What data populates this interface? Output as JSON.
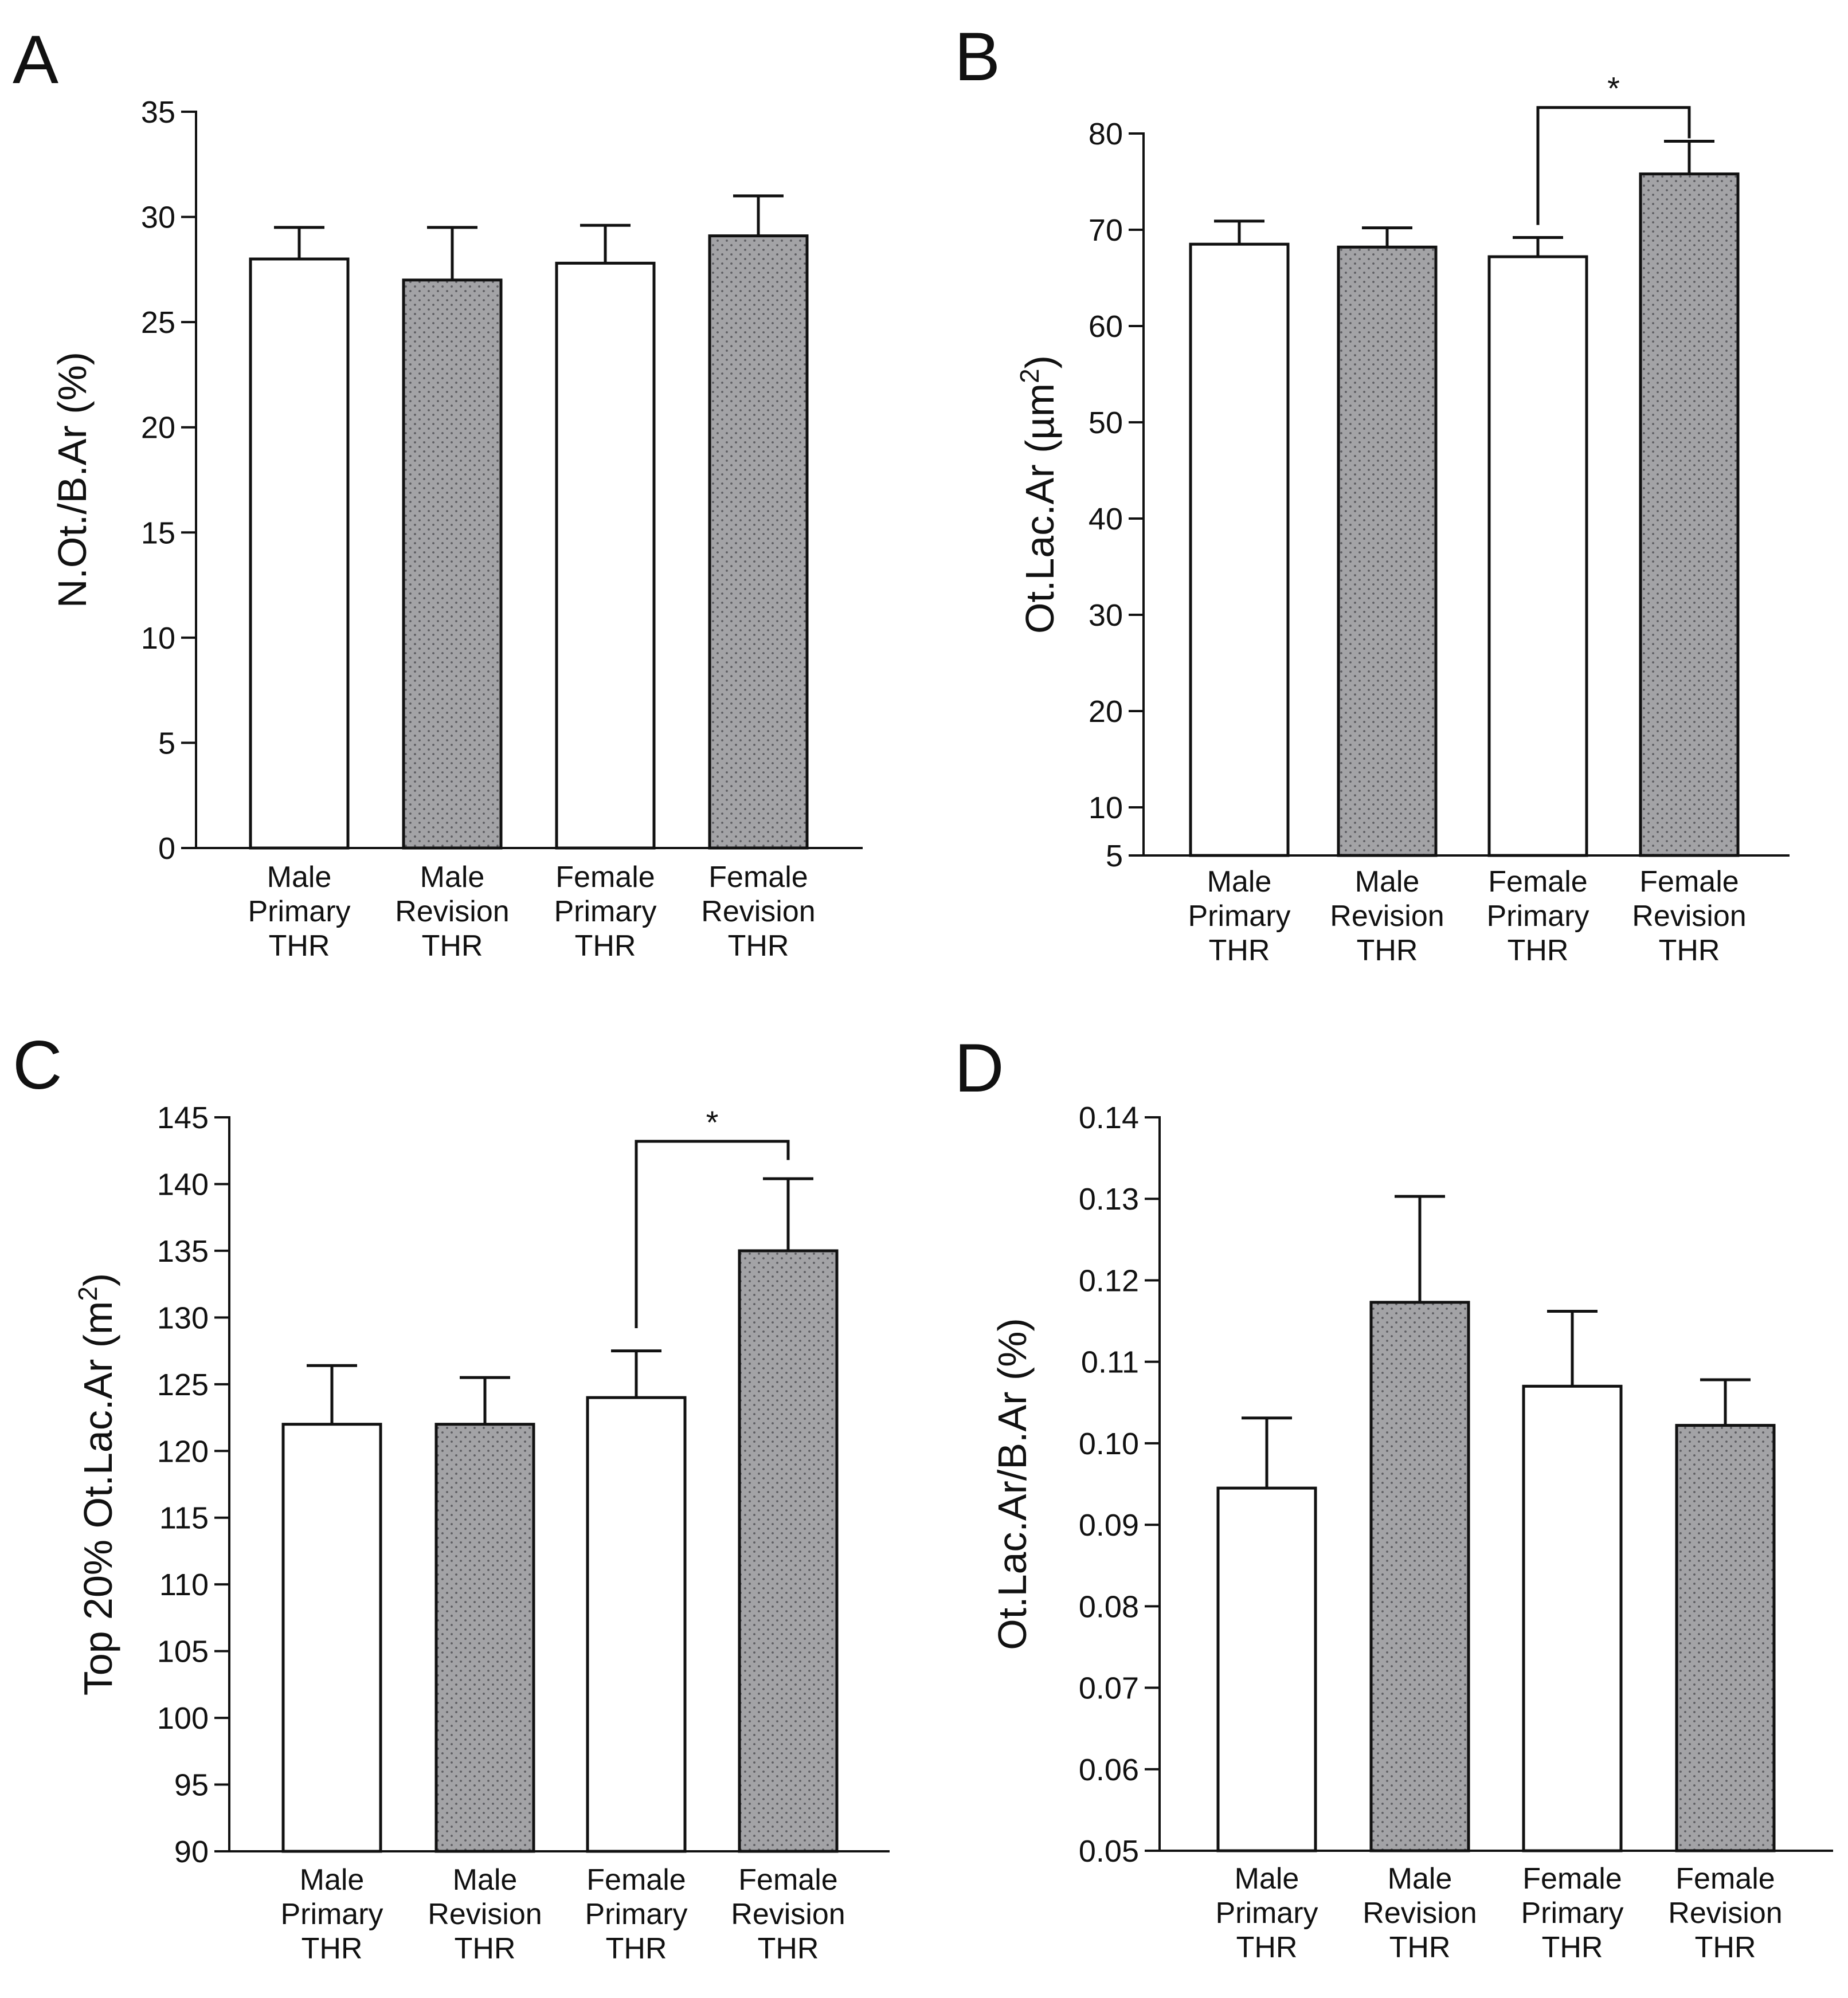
{
  "colors": {
    "axis": "#111111",
    "bar_outline": "#111111",
    "open_fill": "#ffffff",
    "shaded_fill": "#a3a3a6",
    "shaded_dot": "#5c5c60"
  },
  "chart_data": [
    {
      "panel": "A",
      "type": "bar",
      "categories": [
        [
          "Male",
          "Primary",
          "THR"
        ],
        [
          "Male",
          "Revision",
          "THR"
        ],
        [
          "Female",
          "Primary",
          "THR"
        ],
        [
          "Female",
          "Revision",
          "THR"
        ]
      ],
      "values": [
        28.0,
        27.0,
        27.8,
        29.1
      ],
      "errors": [
        1.5,
        2.5,
        1.8,
        1.9
      ],
      "fills": [
        "open",
        "shaded",
        "open",
        "shaded"
      ],
      "ylabel": "N.Ot./B.Ar (%)",
      "ylabel_sup": "",
      "ylabel_tail": "",
      "ylim": [
        0,
        35
      ],
      "yticks": [
        0,
        5,
        10,
        15,
        20,
        25,
        30,
        35
      ],
      "ytick_labels": [
        "0",
        "5",
        "10",
        "15",
        "20",
        "25",
        "30",
        "35"
      ],
      "significance": []
    },
    {
      "panel": "B",
      "type": "bar",
      "categories": [
        [
          "Male",
          "Primary",
          "THR"
        ],
        [
          "Male",
          "Revision",
          "THR"
        ],
        [
          "Female",
          "Primary",
          "THR"
        ],
        [
          "Female",
          "Revision",
          "THR"
        ]
      ],
      "values": [
        68.5,
        68.2,
        67.2,
        75.8
      ],
      "errors": [
        2.4,
        2.0,
        2.0,
        3.4
      ],
      "fills": [
        "open",
        "shaded",
        "open",
        "shaded"
      ],
      "ylabel": "Ot.Lac.Ar (µm",
      "ylabel_sup": "2",
      "ylabel_tail": ")",
      "ylim": [
        5,
        80
      ],
      "yticks": [
        5,
        10,
        20,
        30,
        40,
        50,
        60,
        70,
        80
      ],
      "ytick_labels": [
        "5",
        "10",
        "20",
        "30",
        "40",
        "50",
        "60",
        "70",
        "80"
      ],
      "significance": [
        {
          "from": 2,
          "to": 3,
          "label": "*",
          "level": 82.7,
          "drop_from": 70.5,
          "drop_to": 79.5
        }
      ]
    },
    {
      "panel": "C",
      "type": "bar",
      "categories": [
        [
          "Male",
          "Primary",
          "THR"
        ],
        [
          "Male",
          "Revision",
          "THR"
        ],
        [
          "Female",
          "Primary",
          "THR"
        ],
        [
          "Female",
          "Revision",
          "THR"
        ]
      ],
      "values": [
        122.0,
        122.0,
        124.0,
        135.0
      ],
      "errors": [
        4.4,
        3.5,
        3.5,
        5.4
      ],
      "fills": [
        "open",
        "shaded",
        "open",
        "shaded"
      ],
      "ylabel": "Top 20% Ot.Lac.Ar (m",
      "ylabel_sup": "2",
      "ylabel_tail": ")",
      "ylim": [
        90,
        145
      ],
      "yticks": [
        90,
        95,
        100,
        105,
        110,
        115,
        120,
        125,
        130,
        135,
        140,
        145
      ],
      "ytick_labels": [
        "90",
        "95",
        "100",
        "105",
        "110",
        "115",
        "120",
        "125",
        "130",
        "135",
        "140",
        "145"
      ],
      "significance": [
        {
          "from": 2,
          "to": 3,
          "label": "*",
          "level": 143.2,
          "drop_from": 129.2,
          "drop_to": 141.8
        }
      ]
    },
    {
      "panel": "D",
      "type": "bar",
      "categories": [
        [
          "Male",
          "Primary",
          "THR"
        ],
        [
          "Male",
          "Revision",
          "THR"
        ],
        [
          "Female",
          "Primary",
          "THR"
        ],
        [
          "Female",
          "Revision",
          "THR"
        ]
      ],
      "values": [
        0.0945,
        0.1173,
        0.107,
        0.1022
      ],
      "errors": [
        0.0086,
        0.013,
        0.0092,
        0.0056
      ],
      "fills": [
        "open",
        "shaded",
        "open",
        "shaded"
      ],
      "ylabel": "Ot.Lac.Ar/B.Ar (%)",
      "ylabel_sup": "",
      "ylabel_tail": "",
      "ylim": [
        0.05,
        0.14
      ],
      "yticks": [
        0.05,
        0.06,
        0.07,
        0.08,
        0.09,
        0.1,
        0.11,
        0.12,
        0.13,
        0.14
      ],
      "ytick_labels": [
        "0.05",
        "0.06",
        "0.07",
        "0.08",
        "0.09",
        "0.10",
        "0.11",
        "0.12",
        "0.13",
        "0.14"
      ],
      "significance": []
    }
  ]
}
